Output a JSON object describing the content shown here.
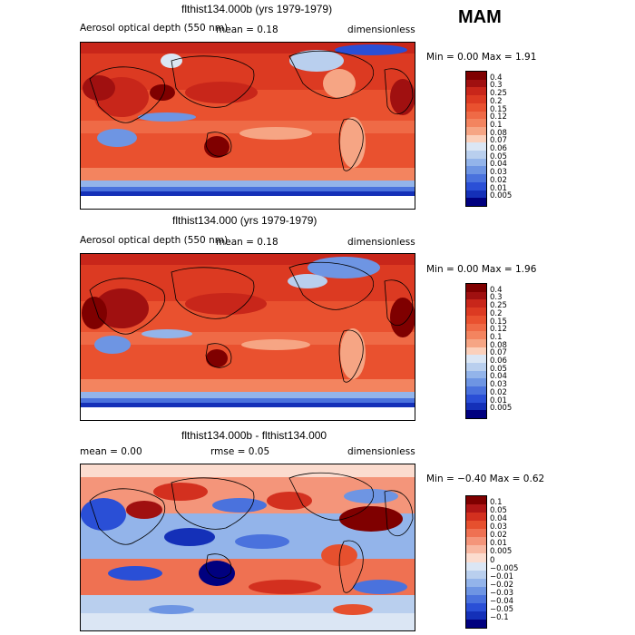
{
  "season": "MAM",
  "panels": [
    {
      "title": "flthist134.000b (yrs 1979-1979)",
      "variable": "Aerosol optical depth (550 nm)",
      "left_stat": "",
      "mid_stat": "mean =    0.18",
      "units": "dimensionless",
      "minmax": "Min =    0.00 Max =    1.91",
      "colorbar": {
        "labels": [
          "0.4",
          "0.3",
          "0.25",
          "0.2",
          "0.15",
          "0.12",
          "0.1",
          "0.08",
          "0.07",
          "0.06",
          "0.05",
          "0.04",
          "0.03",
          "0.02",
          "0.01",
          "0.005"
        ],
        "colors": [
          "#7f0000",
          "#a01010",
          "#c8261a",
          "#dc3a22",
          "#e9512f",
          "#ef6a46",
          "#f3845f",
          "#f6a584",
          "#fbd0bb",
          "#dbe6f4",
          "#b9cfee",
          "#93b4ea",
          "#6e95e3",
          "#4a72dd",
          "#2a4fd6",
          "#1430b8",
          "#00007f"
        ]
      }
    },
    {
      "title": "flthist134.000 (yrs 1979-1979)",
      "variable": "Aerosol optical depth (550 nm)",
      "left_stat": "",
      "mid_stat": "mean =    0.18",
      "units": "dimensionless",
      "minmax": "Min =    0.00 Max =    1.96",
      "colorbar": {
        "labels": [
          "0.4",
          "0.3",
          "0.25",
          "0.2",
          "0.15",
          "0.12",
          "0.1",
          "0.08",
          "0.07",
          "0.06",
          "0.05",
          "0.04",
          "0.03",
          "0.02",
          "0.01",
          "0.005"
        ],
        "colors": [
          "#7f0000",
          "#a01010",
          "#c8261a",
          "#dc3a22",
          "#e9512f",
          "#ef6a46",
          "#f3845f",
          "#f6a584",
          "#fbd0bb",
          "#dbe6f4",
          "#b9cfee",
          "#93b4ea",
          "#6e95e3",
          "#4a72dd",
          "#2a4fd6",
          "#1430b8",
          "#00007f"
        ]
      }
    },
    {
      "title": "flthist134.000b - flthist134.000",
      "variable": "",
      "left_stat": "mean =    0.00",
      "mid_stat": "rmse =    0.05",
      "units": "dimensionless",
      "minmax": "Min =  −0.40 Max =    0.62",
      "colorbar": {
        "labels": [
          "0.1",
          "0.05",
          "0.04",
          "0.03",
          "0.02",
          "0.01",
          "0.005",
          "0",
          "−0.005",
          "−0.01",
          "−0.02",
          "−0.03",
          "−0.04",
          "−0.05",
          "−0.1"
        ],
        "colors": [
          "#7f0000",
          "#b01616",
          "#d3301f",
          "#e6502e",
          "#ef7152",
          "#f4957a",
          "#f8b8a2",
          "#fbdccf",
          "#dbe6f4",
          "#b9cfee",
          "#93b4ea",
          "#6e95e3",
          "#4a72dd",
          "#2a4fd6",
          "#1430b8",
          "#00007f"
        ]
      }
    }
  ],
  "chart_data": [
    {
      "type": "heatmap",
      "title": "flthist134.000b (yrs 1979-1979)",
      "subtitle": "Aerosol optical depth (550 nm)",
      "units": "dimensionless",
      "mean": 0.18,
      "min": 0.0,
      "max": 1.91,
      "levels": [
        0.005,
        0.01,
        0.02,
        0.03,
        0.04,
        0.05,
        0.06,
        0.07,
        0.08,
        0.1,
        0.12,
        0.15,
        0.2,
        0.25,
        0.3,
        0.4
      ]
    },
    {
      "type": "heatmap",
      "title": "flthist134.000 (yrs 1979-1979)",
      "subtitle": "Aerosol optical depth (550 nm)",
      "units": "dimensionless",
      "mean": 0.18,
      "min": 0.0,
      "max": 1.96,
      "levels": [
        0.005,
        0.01,
        0.02,
        0.03,
        0.04,
        0.05,
        0.06,
        0.07,
        0.08,
        0.1,
        0.12,
        0.15,
        0.2,
        0.25,
        0.3,
        0.4
      ]
    },
    {
      "type": "heatmap",
      "title": "flthist134.000b - flthist134.000",
      "units": "dimensionless",
      "mean": 0.0,
      "rmse": 0.05,
      "min": -0.4,
      "max": 0.62,
      "levels": [
        -0.1,
        -0.05,
        -0.04,
        -0.03,
        -0.02,
        -0.01,
        -0.005,
        0,
        0.005,
        0.01,
        0.02,
        0.03,
        0.04,
        0.05,
        0.1
      ]
    }
  ]
}
